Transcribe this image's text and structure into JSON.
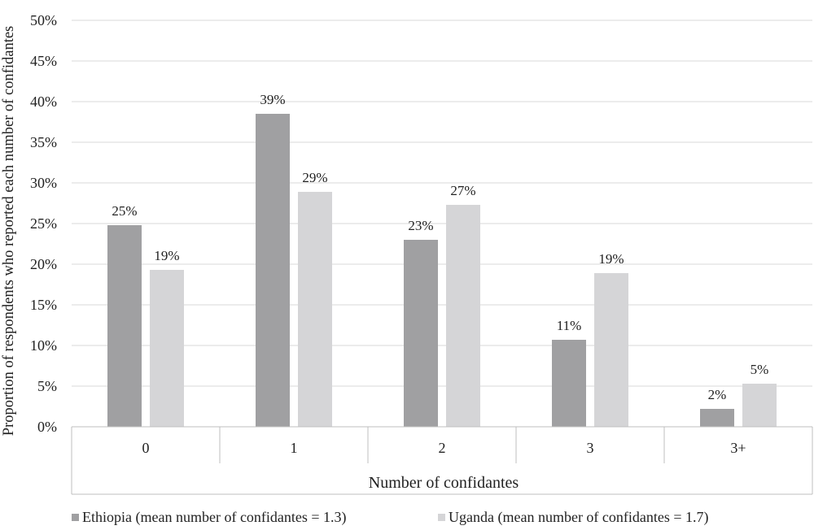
{
  "chart_data": {
    "type": "bar",
    "xlabel": "Number of confidantes",
    "ylabel": "Proportion of respondents who reported each number of confidantes",
    "categories": [
      "0",
      "1",
      "2",
      "3",
      "3+"
    ],
    "ylim": [
      0,
      50
    ],
    "yticks": [
      "0%",
      "5%",
      "10%",
      "15%",
      "20%",
      "25%",
      "30%",
      "35%",
      "40%",
      "45%",
      "50%"
    ],
    "grid": true,
    "legend_position": "bottom",
    "series": [
      {
        "name": "Ethiopia (mean number of confidantes = 1.3)",
        "color": "#a0a0a2",
        "values": [
          24.8,
          38.5,
          23.0,
          10.7,
          2.2
        ],
        "labels": [
          "25%",
          "39%",
          "23%",
          "11%",
          "2%"
        ]
      },
      {
        "name": "Uganda (mean number of confidantes = 1.7)",
        "color": "#d5d5d7",
        "values": [
          19.3,
          28.9,
          27.3,
          18.9,
          5.3
        ],
        "labels": [
          "19%",
          "29%",
          "27%",
          "19%",
          "5%"
        ]
      }
    ]
  }
}
